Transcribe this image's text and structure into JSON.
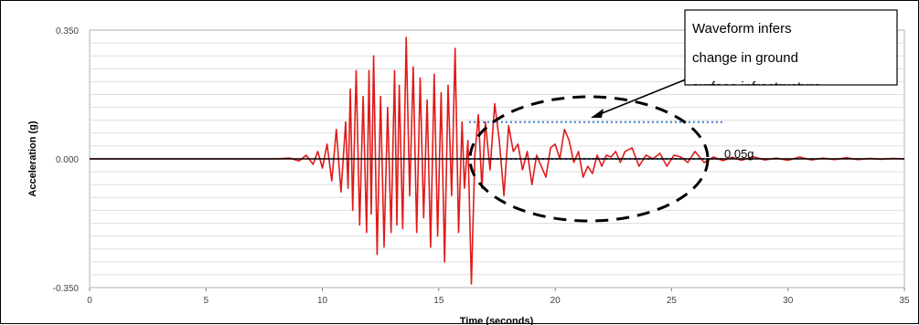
{
  "chart_data": {
    "type": "line",
    "title": "",
    "xlabel": "Time (seconds)",
    "ylabel": "Acceleration (g)",
    "xlim": [
      0,
      35
    ],
    "ylim": [
      -0.35,
      0.35
    ],
    "x_ticks": [
      0,
      5,
      10,
      15,
      20,
      25,
      30,
      35
    ],
    "x_tick_labels": [
      "0",
      "5",
      "10",
      "15",
      "20",
      "25",
      "30",
      "35"
    ],
    "y_ticks": [
      -0.35,
      0,
      0.35
    ],
    "y_tick_labels": [
      "-0.350",
      "0.000",
      "0.350"
    ],
    "grid": true,
    "series": [
      {
        "color": "#e01b1b",
        "x": [
          0,
          8,
          8.6,
          9.0,
          9.3,
          9.6,
          9.8,
          10.0,
          10.2,
          10.4,
          10.6,
          10.8,
          11.0,
          11.1,
          11.2,
          11.3,
          11.45,
          11.6,
          11.75,
          11.9,
          12.0,
          12.1,
          12.2,
          12.35,
          12.5,
          12.65,
          12.8,
          12.95,
          13.1,
          13.2,
          13.3,
          13.45,
          13.6,
          13.75,
          13.9,
          14.05,
          14.2,
          14.35,
          14.5,
          14.65,
          14.8,
          14.95,
          15.1,
          15.25,
          15.4,
          15.55,
          15.7,
          15.85,
          16.0,
          16.1,
          16.25,
          16.4,
          16.55,
          16.7,
          16.85,
          17.0,
          17.2,
          17.4,
          17.6,
          17.8,
          18.0,
          18.2,
          18.4,
          18.6,
          18.8,
          19.0,
          19.2,
          19.4,
          19.6,
          19.8,
          20.0,
          20.2,
          20.4,
          20.6,
          20.8,
          21.0,
          21.2,
          21.4,
          21.6,
          21.8,
          22.0,
          22.2,
          22.4,
          22.6,
          22.8,
          23.0,
          23.3,
          23.6,
          23.9,
          24.2,
          24.5,
          24.8,
          25.1,
          25.4,
          25.7,
          26.0,
          26.4,
          26.8,
          27.2,
          27.6,
          28.0,
          28.5,
          29.0,
          29.5,
          30.0,
          30.5,
          31.0,
          31.5,
          32.0,
          32.5,
          33.0,
          33.5,
          34.0,
          34.5,
          35.0
        ],
        "y": [
          0,
          0,
          0.002,
          -0.006,
          0.01,
          -0.015,
          0.02,
          -0.025,
          0.04,
          -0.06,
          0.08,
          -0.09,
          0.1,
          -0.08,
          0.19,
          -0.14,
          0.24,
          -0.18,
          0.17,
          -0.2,
          0.24,
          -0.15,
          0.28,
          -0.26,
          0.17,
          -0.24,
          0.14,
          -0.2,
          0.24,
          -0.18,
          0.2,
          -0.19,
          0.33,
          -0.1,
          0.25,
          -0.2,
          0.22,
          -0.16,
          0.16,
          -0.24,
          0.23,
          -0.21,
          0.18,
          -0.28,
          0.2,
          -0.1,
          0.3,
          -0.2,
          0.1,
          -0.08,
          0.05,
          -0.34,
          0.01,
          0.12,
          -0.08,
          0.1,
          -0.03,
          0.15,
          0.05,
          -0.1,
          0.09,
          0.02,
          0.04,
          -0.03,
          0.02,
          -0.07,
          0.01,
          -0.02,
          -0.05,
          0.03,
          0.04,
          0.0,
          0.08,
          0.05,
          -0.01,
          0.02,
          -0.05,
          -0.02,
          -0.04,
          0.01,
          -0.02,
          0.01,
          0.005,
          0.02,
          -0.01,
          0.02,
          0.03,
          -0.02,
          0.01,
          0.0,
          0.015,
          -0.02,
          0.01,
          0.005,
          -0.01,
          0.02,
          -0.01,
          0.005,
          -0.005,
          0.004,
          -0.004,
          0.006,
          -0.003,
          0.002,
          -0.004,
          0.005,
          -0.003,
          0.002,
          -0.002,
          0.003,
          -0.002,
          0.001,
          -0.001,
          0.001,
          0
        ]
      }
    ],
    "reference_lines": [
      {
        "y": 0.1,
        "x_from": 16.3,
        "x_to": 27.2,
        "style": "dotted",
        "color": "#3b7bd4"
      },
      {
        "y": 0.0,
        "x_from": 16.3,
        "x_to": 27.2,
        "style": "dotted",
        "color": "#3b7bd4"
      }
    ],
    "annotations": {
      "callout_lines": [
        "Waveform infers",
        "change in ground",
        "surface infrastructure"
      ],
      "level_label": "0.05g"
    }
  }
}
